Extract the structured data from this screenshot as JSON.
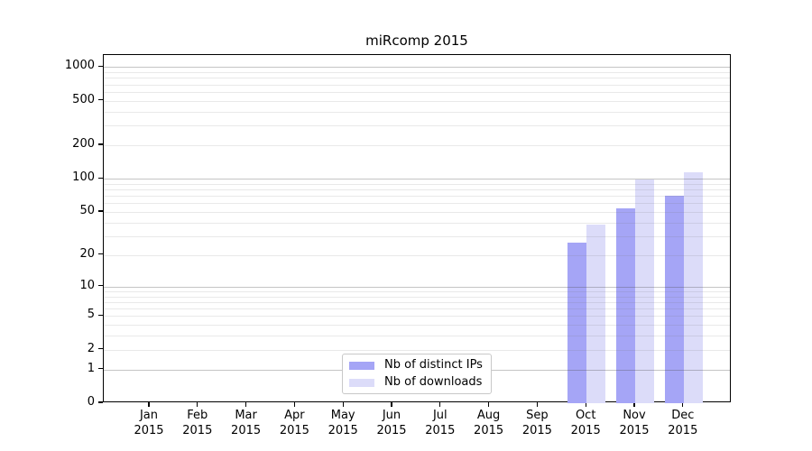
{
  "figure": {
    "title": "miRcomp 2015"
  },
  "chart_data": {
    "type": "bar",
    "title": "miRcomp 2015",
    "categories": [
      "Jan 2015",
      "Feb 2015",
      "Mar 2015",
      "Apr 2015",
      "May 2015",
      "Jun 2015",
      "Jul 2015",
      "Aug 2015",
      "Sep 2015",
      "Oct 2015",
      "Nov 2015",
      "Dec 2015"
    ],
    "series": [
      {
        "name": "Nb of distinct IPs",
        "color": "#a5a5f6",
        "values": [
          0,
          0,
          0,
          0,
          0,
          0,
          0,
          0,
          0,
          26,
          54,
          70
        ]
      },
      {
        "name": "Nb of downloads",
        "color": "#dcdcf9",
        "values": [
          0,
          0,
          0,
          0,
          0,
          0,
          0,
          0,
          0,
          38,
          98,
          115
        ]
      }
    ],
    "ylabel": "",
    "xlabel": "",
    "yscale": "log10(1+x)",
    "yticks": [
      0,
      1,
      2,
      5,
      10,
      20,
      50,
      100,
      200,
      500,
      1000
    ],
    "ylim": [
      0,
      1000
    ],
    "grid": "horizontal major (decades) + minor (2-9 multiples), drawn over bars",
    "legend_position": "inside plot, lower center-left"
  },
  "legend": {
    "items": [
      {
        "label": "Nb of distinct IPs",
        "swatch": "#a5a5f6"
      },
      {
        "label": "Nb of downloads",
        "swatch": "#dcdcf9"
      }
    ]
  },
  "colors": {
    "background": "#ffffff",
    "bar_distinct_ips": "#a5a5f6",
    "bar_downloads": "#dcdcf9",
    "grid_major": "#c2c2c2",
    "grid_minor": "#e6e6e6",
    "spine": "#000000",
    "legend_border": "#c8c8c8",
    "text": "#000000"
  }
}
